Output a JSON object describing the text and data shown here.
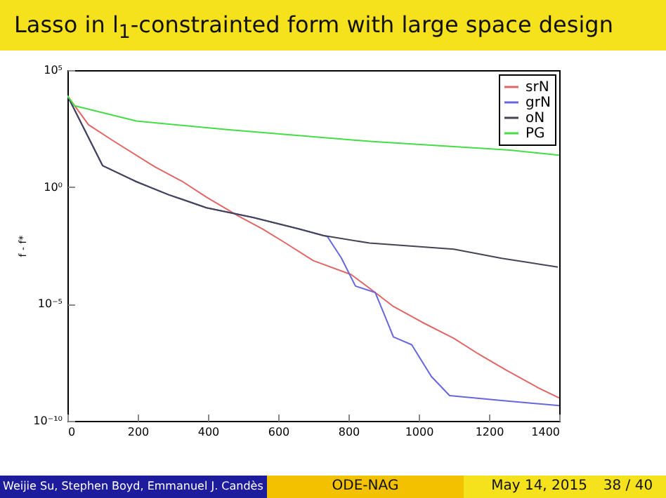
{
  "chart_data": {
    "type": "line",
    "title": "Lasso in l$_{1}$-constrainted form with large space design",
    "ylabel": "f - f*",
    "xlim": [
      0,
      1400
    ],
    "xticks": [
      0,
      200,
      400,
      600,
      800,
      1000,
      1200,
      1400
    ],
    "ylim": [
      1e-10,
      100000
    ],
    "yticks": [
      {
        "value": 1e-10,
        "label": "10⁻¹⁰"
      },
      {
        "value": 1e-05,
        "label": "10⁻⁵"
      },
      {
        "value": 1,
        "label": "10⁰"
      },
      {
        "value": 100000,
        "label": "10⁵"
      }
    ],
    "log": true,
    "grid": false,
    "legend": "top right",
    "series": [
      {
        "name": "srN",
        "color": "#e06666",
        "x": [
          0,
          60,
          128,
          248,
          328,
          396,
          488,
          556,
          620,
          700,
          808,
          876,
          928,
          1008,
          1100,
          1168,
          1248,
          1340,
          1400
        ],
        "values": [
          8000,
          460,
          100,
          7.4,
          1.7,
          0.37,
          0.056,
          0.016,
          0.0041,
          0.00071,
          0.00018,
          3.1e-05,
          7.8e-06,
          1.7e-06,
          3.4e-07,
          7.6e-08,
          1.5e-08,
          2.6e-09,
          9.5e-10
        ]
      },
      {
        "name": "grN",
        "color": "#6666dd",
        "x": [
          0,
          100,
          196,
          288,
          396,
          528,
          660,
          728,
          740,
          780,
          820,
          876,
          900,
          928,
          980,
          1036,
          1088,
          1236,
          1400
        ],
        "values": [
          8000,
          8.3,
          1.7,
          0.47,
          0.13,
          0.05,
          0.016,
          0.0085,
          0.0076,
          0.00091,
          5.8e-05,
          3.1e-05,
          4.2e-06,
          3.9e-07,
          1.8e-07,
          7.9e-09,
          1.2e-09,
          7.4e-10,
          4.5e-10
        ]
      },
      {
        "name": "oN",
        "color": "#444455",
        "x": [
          0,
          100,
          196,
          288,
          396,
          528,
          660,
          728,
          860,
          1100,
          1236,
          1396
        ],
        "values": [
          8000,
          8.3,
          1.7,
          0.47,
          0.13,
          0.05,
          0.016,
          0.0085,
          0.004,
          0.0022,
          0.0009,
          0.00038
        ]
      },
      {
        "name": "PG",
        "color": "#44dd44",
        "x": [
          0,
          20,
          196,
          460,
          860,
          1260,
          1400
        ],
        "values": [
          8000,
          3000,
          670,
          280,
          90,
          38,
          23
        ]
      }
    ],
    "annotations": [
      "Weijie Su, Stephen Boyd, Emmanuel J. Candès",
      "ODE-NAG",
      "May 14, 2015",
      "38 / 40"
    ]
  }
}
